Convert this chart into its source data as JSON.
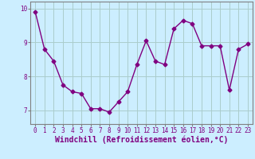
{
  "x": [
    0,
    1,
    2,
    3,
    4,
    5,
    6,
    7,
    8,
    9,
    10,
    11,
    12,
    13,
    14,
    15,
    16,
    17,
    18,
    19,
    20,
    21,
    22,
    23
  ],
  "y": [
    9.9,
    8.8,
    8.45,
    7.75,
    7.55,
    7.5,
    7.05,
    7.05,
    6.95,
    7.25,
    7.55,
    8.35,
    9.05,
    8.45,
    8.35,
    9.4,
    9.65,
    9.55,
    8.9,
    8.9,
    8.9,
    7.6,
    8.8,
    8.95
  ],
  "line_color": "#800080",
  "marker": "D",
  "marker_size": 2.5,
  "bg_color": "#cceeff",
  "grid_color": "#aacccc",
  "xlabel": "Windchill (Refroidissement éolien,°C)",
  "ylim": [
    6.6,
    10.2
  ],
  "xlim": [
    -0.5,
    23.5
  ],
  "yticks": [
    7,
    8,
    9,
    10
  ],
  "xticks": [
    0,
    1,
    2,
    3,
    4,
    5,
    6,
    7,
    8,
    9,
    10,
    11,
    12,
    13,
    14,
    15,
    16,
    17,
    18,
    19,
    20,
    21,
    22,
    23
  ],
  "tick_fontsize": 5.5,
  "xlabel_fontsize": 7.0
}
